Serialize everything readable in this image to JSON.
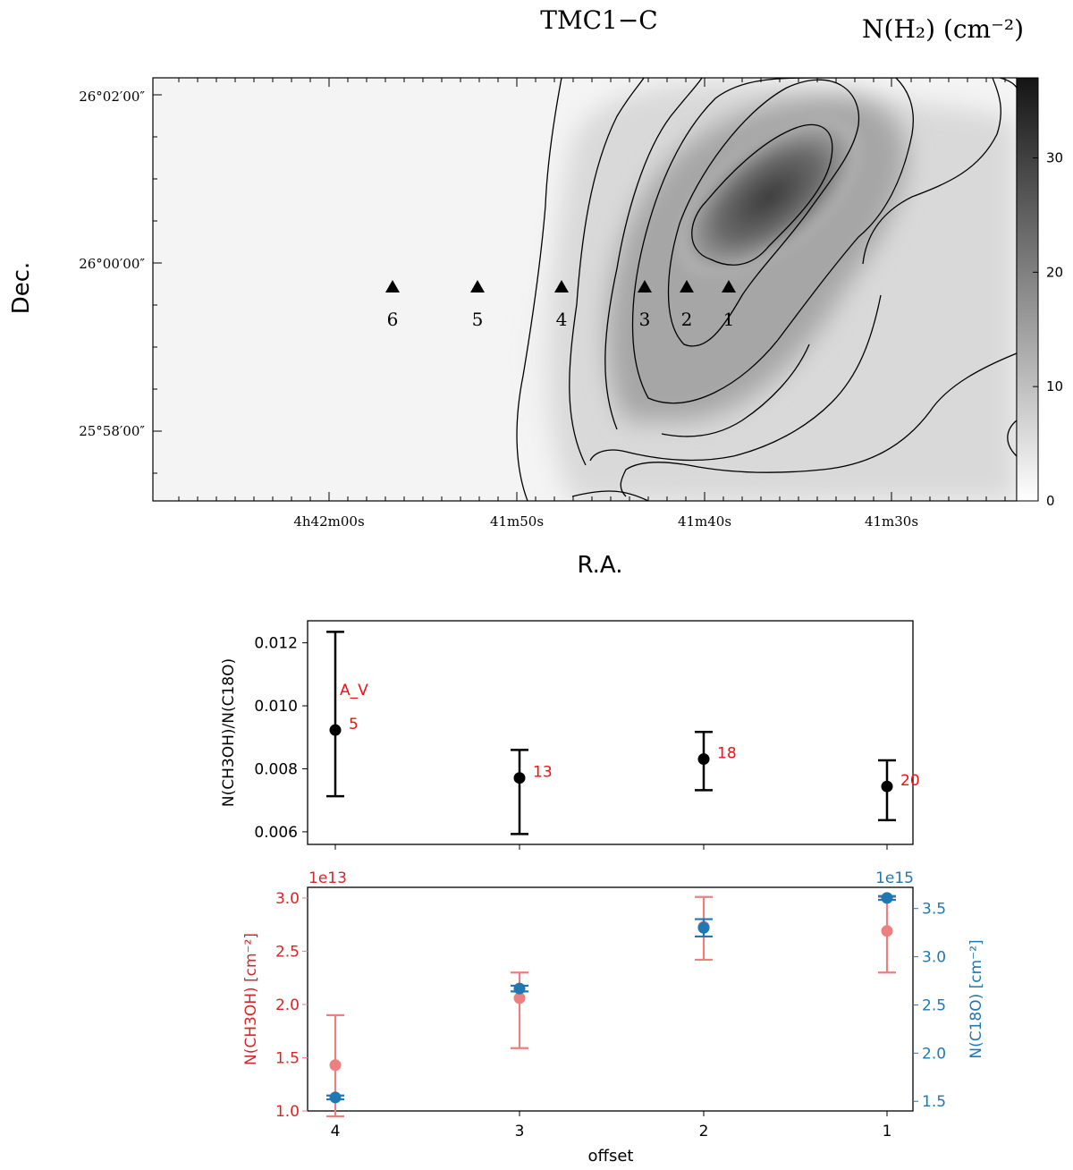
{
  "chart_data": [
    {
      "type": "heatmap",
      "title": "TMC1−C",
      "colorbar_label": "N(H₂) (cm⁻²)",
      "xlabel": "R.A.",
      "ylabel": "Dec.",
      "x_ticks": [
        "4h42m00s",
        "41m50s",
        "41m40s",
        "41m30s"
      ],
      "y_ticks": [
        "26°02′00″",
        "26°00′00″",
        "25°58′00″"
      ],
      "colorbar": {
        "vmin": 0,
        "vmax": 37,
        "ticks": [
          0,
          10,
          20,
          30
        ],
        "colormap": "gray_r"
      },
      "grid": false,
      "markers": {
        "symbol": "triangle",
        "labels": [
          "6",
          "5",
          "4",
          "3",
          "2",
          "1"
        ]
      }
    },
    {
      "type": "scatter",
      "ylabel": "N(CH3OH)/N(C18O)",
      "categories": [
        "4",
        "3",
        "2",
        "1"
      ],
      "values": [
        0.00923,
        0.00771,
        0.00831,
        0.00744
      ],
      "err_low": [
        0.0021,
        0.00178,
        0.00099,
        0.00107
      ],
      "err_high": [
        0.00312,
        0.00089,
        0.00086,
        0.00083
      ],
      "ylim": [
        0.0056,
        0.0127
      ],
      "yticks": [
        0.006,
        0.008,
        0.01,
        0.012
      ],
      "ytick_labels": [
        "0.006",
        "0.008",
        "0.010",
        "0.012"
      ],
      "annotation_header": "A_V",
      "annotations": [
        "5",
        "13",
        "18",
        "20"
      ],
      "annotation_color": "#ee1111",
      "color": "#000000"
    },
    {
      "type": "scatter",
      "xlabel": "offset",
      "categories": [
        "4",
        "3",
        "2",
        "1"
      ],
      "series": [
        {
          "name": "N(CH3OH)",
          "axis": "left",
          "color": "#ee7f7f",
          "scale_label": "1e13",
          "ylabel": "N(CH3OH) [cm⁻²]",
          "values": [
            1.43,
            2.06,
            2.73,
            2.69
          ],
          "err_low": [
            0.48,
            0.47,
            0.31,
            0.39
          ],
          "err_high": [
            0.47,
            0.24,
            0.28,
            0.32
          ],
          "ylim": [
            1.0,
            3.1
          ],
          "yticks": [
            1.0,
            1.5,
            2.0,
            2.5,
            3.0
          ]
        },
        {
          "name": "N(C18O)",
          "axis": "right",
          "color": "#1f77b4",
          "scale_label": "1e15",
          "ylabel": "N(C18O) [cm⁻²]",
          "values": [
            1.54,
            2.67,
            3.3,
            3.61
          ],
          "err_low": [
            0.02,
            0.03,
            0.09,
            0.02
          ],
          "err_high": [
            0.02,
            0.03,
            0.09,
            0.02
          ],
          "ylim": [
            1.4,
            3.72
          ],
          "yticks": [
            1.5,
            2.0,
            2.5,
            3.0,
            3.5
          ]
        }
      ]
    }
  ]
}
